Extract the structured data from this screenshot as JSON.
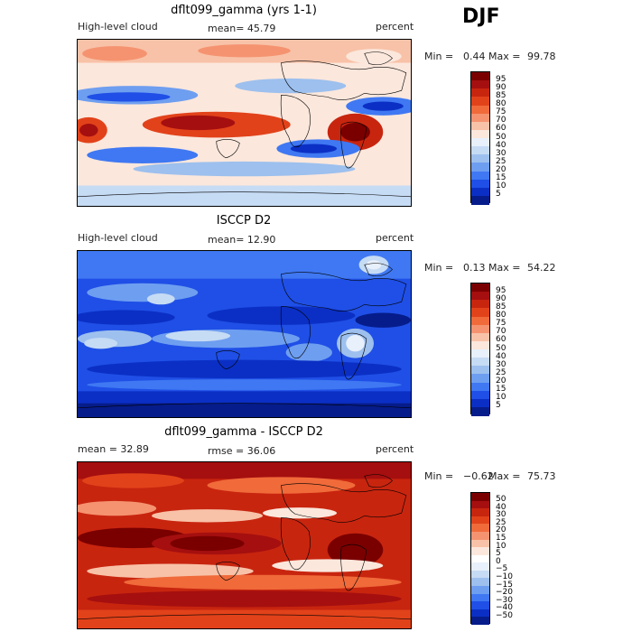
{
  "season": "DJF",
  "panels": [
    {
      "title": "dflt099_gamma (yrs 1-1)",
      "left_label": "High-level cloud",
      "center_label": "mean=  45.79",
      "right_label": "percent",
      "min_label": "Min =",
      "min_value": "0.44",
      "max_label": "Max =",
      "max_value": "99.78",
      "colorbar_labels": [
        "95",
        "90",
        "85",
        "80",
        "75",
        "70",
        "60",
        "50",
        "40",
        "30",
        "25",
        "20",
        "15",
        "10",
        "5"
      ]
    },
    {
      "title": "ISCCP D2",
      "left_label": "High-level cloud",
      "center_label": "mean=  12.90",
      "right_label": "percent",
      "min_label": "Min =",
      "min_value": "0.13",
      "max_label": "Max =",
      "max_value": "54.22",
      "colorbar_labels": [
        "95",
        "90",
        "85",
        "80",
        "75",
        "70",
        "60",
        "50",
        "40",
        "30",
        "25",
        "20",
        "15",
        "10",
        "5"
      ]
    },
    {
      "title": "dflt099_gamma - ISCCP D2",
      "left_label": "mean =  32.89",
      "center_label": "rmse =  36.06",
      "right_label": "percent",
      "min_label": "Min =",
      "min_value": "−0.62",
      "max_label": "Max =",
      "max_value": "75.73",
      "colorbar_labels": [
        "50",
        "40",
        "30",
        "25",
        "20",
        "15",
        "10",
        "5",
        "0",
        "−5",
        "−10",
        "−15",
        "−20",
        "−30",
        "−40",
        "−50"
      ]
    }
  ],
  "palettes": {
    "abs": [
      "#7a0000",
      "#a50f0f",
      "#c8250f",
      "#e2421a",
      "#f06a3a",
      "#f59370",
      "#f8c2a8",
      "#fbe7dc",
      "#e8f0fb",
      "#c6dbf4",
      "#9dc0ee",
      "#6e9ef0",
      "#3f78f2",
      "#1f4fe6",
      "#0b2fc4",
      "#061c8a"
    ],
    "diff": [
      "#7a0000",
      "#a50f0f",
      "#c8250f",
      "#e2421a",
      "#f06a3a",
      "#f59370",
      "#f8c2a8",
      "#fbe7dc",
      "#ffffff",
      "#e8f0fb",
      "#c6dbf4",
      "#9dc0ee",
      "#6e9ef0",
      "#3f78f2",
      "#1f4fe6",
      "#0b2fc4",
      "#061c8a"
    ]
  }
}
